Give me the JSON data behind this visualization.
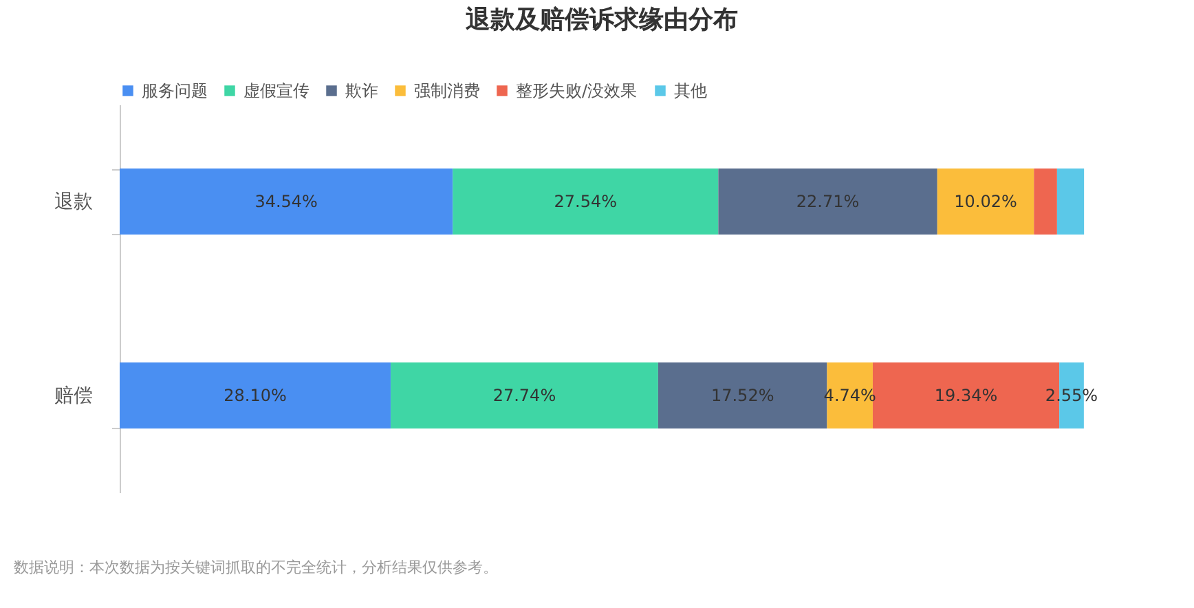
{
  "chart_data": {
    "type": "bar",
    "orientation": "horizontal",
    "stacked": true,
    "title": "退款及赔偿诉求缘由分布",
    "categories": [
      "退款",
      "赔偿"
    ],
    "xlim": [
      0,
      100
    ],
    "series": [
      {
        "name": "服务问题",
        "color": "#4a8ff2",
        "values": [
          34.54,
          28.1
        ],
        "value_labels": [
          "34.54%",
          "28.10%"
        ]
      },
      {
        "name": "虚假宣传",
        "color": "#3fd6a5",
        "values": [
          27.54,
          27.74
        ],
        "value_labels": [
          "27.54%",
          "27.74%"
        ]
      },
      {
        "name": "欺诈",
        "color": "#5a6e8e",
        "values": [
          22.71,
          17.52
        ],
        "value_labels": [
          "22.71%",
          "17.52%"
        ]
      },
      {
        "name": "强制消费",
        "color": "#fbbd3b",
        "values": [
          10.02,
          4.74
        ],
        "value_labels": [
          "10.02%",
          "4.74%"
        ]
      },
      {
        "name": "整形失败/没效果",
        "color": "#ee6650",
        "values": [
          2.4,
          19.34
        ],
        "value_labels": [
          null,
          "19.34%"
        ]
      },
      {
        "name": "其他",
        "color": "#5bc8e8",
        "values": [
          2.8,
          2.55
        ],
        "value_labels": [
          null,
          "2.55%"
        ]
      }
    ],
    "legend": "top",
    "grid": false,
    "annotations": [
      "数据说明：本次数据为按关键词抓取的不完全统计，分析结果仅供参考。"
    ]
  }
}
